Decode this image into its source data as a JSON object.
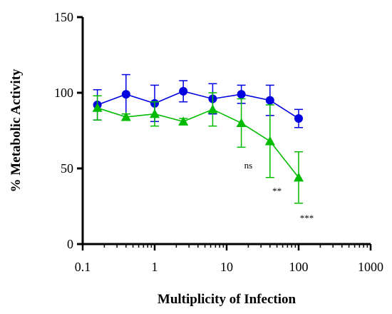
{
  "chart_data": {
    "type": "scatter",
    "title": "",
    "xlabel": "Multiplicity of Infection",
    "ylabel": "% Metabolic Activity",
    "x_scale": "log",
    "xlim": [
      0.1,
      1000
    ],
    "ylim": [
      0,
      150
    ],
    "x_ticks": [
      0.1,
      1,
      10,
      100,
      1000
    ],
    "x_tick_labels": [
      "0.1",
      "1",
      "10",
      "100",
      "1000"
    ],
    "y_ticks": [
      0,
      50,
      100,
      150
    ],
    "y_tick_labels": [
      "0",
      "50",
      "100",
      "150"
    ],
    "grid": false,
    "legend": "none",
    "series": [
      {
        "marker": "circle",
        "color": "#0000e0",
        "x": [
          0.16,
          0.4,
          1.0,
          2.5,
          6.4,
          16,
          40,
          100
        ],
        "y": [
          92,
          99,
          93,
          101,
          96,
          99,
          95,
          83
        ],
        "err": [
          10,
          13,
          12,
          7,
          10,
          6,
          10,
          6
        ]
      },
      {
        "marker": "triangle",
        "color": "#00bb00",
        "x": [
          0.16,
          0.4,
          1.0,
          2.5,
          6.4,
          16,
          40,
          100
        ],
        "y": [
          90,
          84,
          86,
          81,
          89,
          80,
          68,
          44
        ],
        "err": [
          8,
          2,
          8,
          2,
          11,
          16,
          24,
          17
        ]
      }
    ],
    "annotations": [
      {
        "text": "ns",
        "x": 20,
        "y": 50
      },
      {
        "text": "**",
        "x": 50,
        "y": 33
      },
      {
        "text": "***",
        "x": 130,
        "y": 15
      }
    ]
  }
}
